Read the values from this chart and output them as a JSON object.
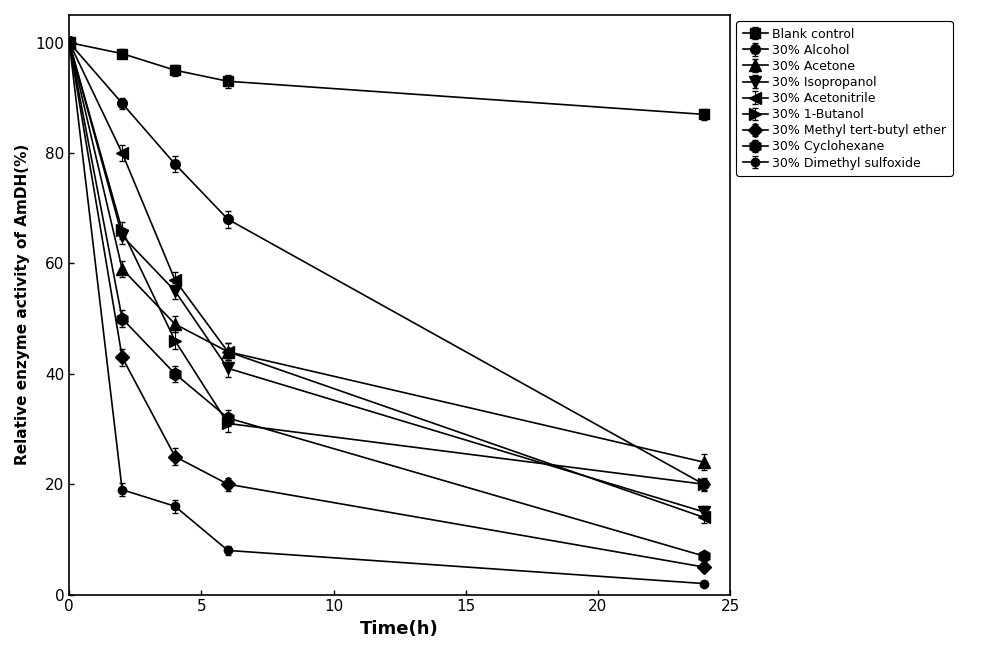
{
  "xlabel": "Time(h)",
  "ylabel": "Relative enzyme activity of AmDH(%)",
  "xlim": [
    0,
    25
  ],
  "ylim": [
    0,
    105
  ],
  "yticks": [
    0,
    20,
    40,
    60,
    80,
    100
  ],
  "xticks": [
    0,
    5,
    10,
    15,
    20,
    25
  ],
  "series": [
    {
      "label": "Blank control",
      "marker": "s",
      "markersize": 7,
      "x": [
        0,
        2,
        4,
        6,
        24
      ],
      "y": [
        100,
        98,
        95,
        93,
        87
      ],
      "yerr": [
        1.0,
        0.8,
        1.0,
        1.2,
        1.0
      ]
    },
    {
      "label": "30% Alcohol",
      "marker": "o",
      "markersize": 7,
      "x": [
        0,
        2,
        4,
        6,
        24
      ],
      "y": [
        100,
        89,
        78,
        68,
        20
      ],
      "yerr": [
        1.0,
        1.0,
        1.5,
        1.5,
        1.0
      ]
    },
    {
      "label": "30% Acetone",
      "marker": "^",
      "markersize": 8,
      "x": [
        0,
        2,
        4,
        6,
        24
      ],
      "y": [
        100,
        59,
        49,
        44,
        24
      ],
      "yerr": [
        1.0,
        1.5,
        1.5,
        1.5,
        1.5
      ]
    },
    {
      "label": "30% Isopropanol",
      "marker": "v",
      "markersize": 8,
      "x": [
        0,
        2,
        4,
        6,
        24
      ],
      "y": [
        100,
        65,
        55,
        41,
        15
      ],
      "yerr": [
        1.0,
        1.5,
        1.5,
        1.5,
        1.0
      ]
    },
    {
      "label": "30% Acetonitrile",
      "marker": "<",
      "markersize": 8,
      "x": [
        0,
        2,
        4,
        6,
        24
      ],
      "y": [
        100,
        80,
        57,
        44,
        14
      ],
      "yerr": [
        1.0,
        1.5,
        1.5,
        1.5,
        1.0
      ]
    },
    {
      "label": "30% 1-Butanol",
      "marker": ">",
      "markersize": 8,
      "x": [
        0,
        2,
        4,
        6,
        24
      ],
      "y": [
        100,
        66,
        46,
        31,
        20
      ],
      "yerr": [
        1.0,
        1.5,
        1.5,
        1.5,
        1.2
      ]
    },
    {
      "label": "30% Methyl tert-butyl ether",
      "marker": "D",
      "markersize": 7,
      "x": [
        0,
        2,
        4,
        6,
        24
      ],
      "y": [
        100,
        43,
        25,
        20,
        5
      ],
      "yerr": [
        1.0,
        1.5,
        1.5,
        1.2,
        0.8
      ]
    },
    {
      "label": "30% Cyclohexane",
      "marker": "h",
      "markersize": 9,
      "x": [
        0,
        2,
        4,
        6,
        24
      ],
      "y": [
        100,
        50,
        40,
        32,
        7
      ],
      "yerr": [
        1.0,
        1.5,
        1.5,
        1.5,
        0.8
      ]
    },
    {
      "label": "30% Dimethyl sulfoxide",
      "marker": "o",
      "markersize": 6,
      "x": [
        0,
        2,
        4,
        6,
        24
      ],
      "y": [
        100,
        19,
        16,
        8,
        2
      ],
      "yerr": [
        1.0,
        1.2,
        1.2,
        0.8,
        0.5
      ]
    }
  ],
  "color": "#000000",
  "linewidth": 1.2,
  "capsize": 2,
  "elinewidth": 0.8,
  "legend_fontsize": 9,
  "xlabel_fontsize": 13,
  "ylabel_fontsize": 11,
  "tick_labelsize": 11
}
